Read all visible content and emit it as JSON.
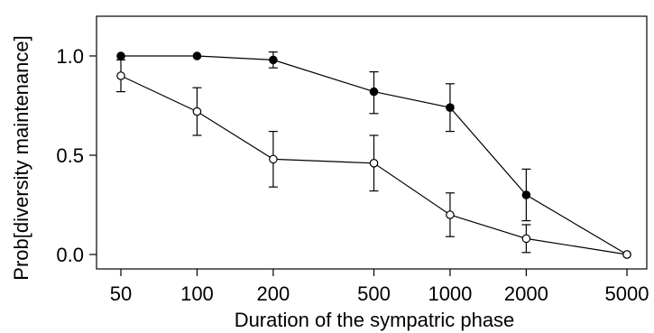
{
  "chart_data": {
    "type": "line",
    "title": "",
    "xlabel": "Duration of the sympatric phase",
    "ylabel": "Prob[diversity maintenance]",
    "x_scale": "log",
    "x": [
      50,
      100,
      200,
      500,
      1000,
      2000,
      5000
    ],
    "x_tick_labels": [
      "50",
      "100",
      "200",
      "500",
      "1000",
      "2000",
      "5000"
    ],
    "y_ticks": [
      0.0,
      0.5,
      1.0
    ],
    "y_tick_labels": [
      "0.0",
      "0.5",
      "1.0"
    ],
    "ylim": [
      -0.04,
      1.04
    ],
    "grid": false,
    "legend": "none",
    "series": [
      {
        "marker": "filled-circle",
        "values": [
          1.0,
          1.0,
          0.98,
          0.82,
          0.74,
          0.3,
          0.0
        ],
        "error_low": [
          1.0,
          1.0,
          0.94,
          0.71,
          0.62,
          0.17,
          0.0
        ],
        "error_high": [
          1.0,
          1.0,
          1.02,
          0.92,
          0.86,
          0.43,
          0.0
        ]
      },
      {
        "marker": "open-circle",
        "values": [
          0.9,
          0.72,
          0.48,
          0.46,
          0.2,
          0.08,
          0.0
        ],
        "error_low": [
          0.82,
          0.6,
          0.34,
          0.32,
          0.09,
          0.01,
          0.0
        ],
        "error_high": [
          0.98,
          0.84,
          0.62,
          0.6,
          0.31,
          0.15,
          0.0
        ]
      }
    ]
  }
}
